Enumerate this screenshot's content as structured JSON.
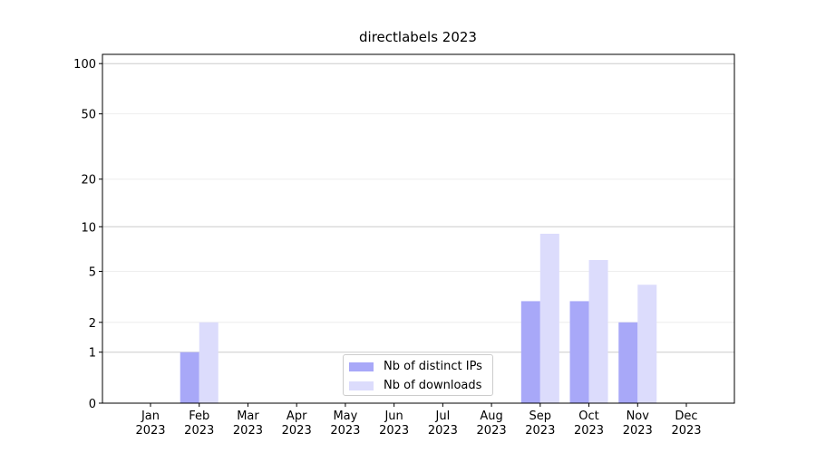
{
  "chart_data": {
    "type": "bar",
    "title": "directlabels 2023",
    "categories": [
      "Jan\n2023",
      "Feb\n2023",
      "Mar\n2023",
      "Apr\n2023",
      "May\n2023",
      "Jun\n2023",
      "Jul\n2023",
      "Aug\n2023",
      "Sep\n2023",
      "Oct\n2023",
      "Nov\n2023",
      "Dec\n2023"
    ],
    "series": [
      {
        "name": "Nb of distinct IPs",
        "color": "#a8a8f8",
        "values": [
          0,
          1,
          0,
          0,
          0,
          0,
          0,
          0,
          3,
          3,
          2,
          0
        ]
      },
      {
        "name": "Nb of downloads",
        "color": "#dcdcfc",
        "values": [
          0,
          2,
          0,
          0,
          0,
          0,
          0,
          0,
          9,
          6,
          4,
          0
        ]
      }
    ],
    "yscale": "log1p",
    "ylim": [
      0,
      113.5
    ],
    "yticks": [
      0,
      1,
      2,
      5,
      10,
      20,
      50,
      100
    ],
    "grid": true,
    "legend": "lower center"
  }
}
